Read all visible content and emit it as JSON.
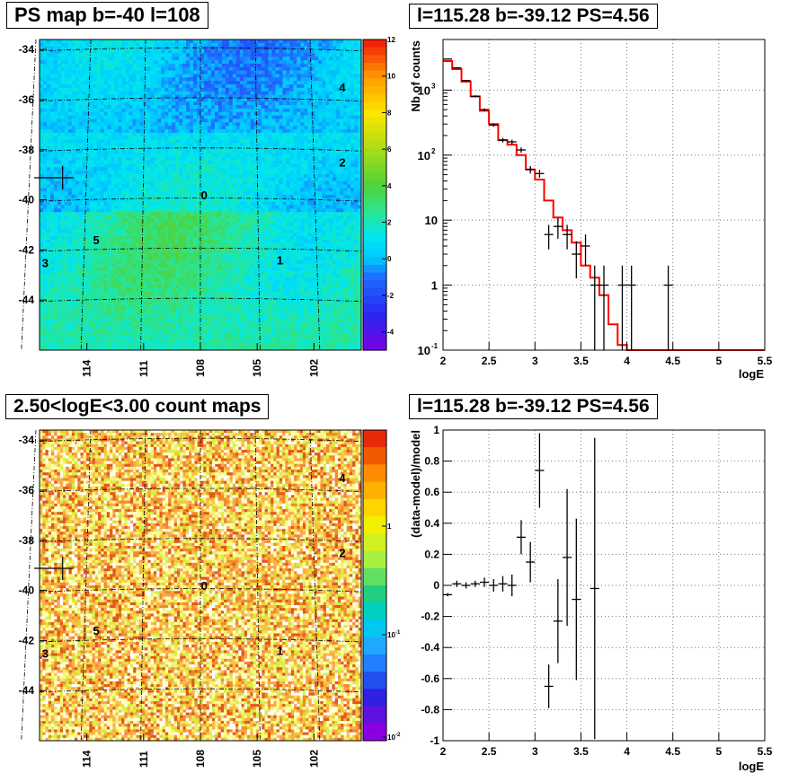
{
  "panels": {
    "ps_map": {
      "title": "PS map b=-40 l=108",
      "y_ticks": [
        "-34",
        "-36",
        "-38",
        "-40",
        "-42",
        "-44"
      ],
      "x_ticks": [
        "114",
        "111",
        "108",
        "105",
        "102"
      ],
      "colorbar_ticks": [
        "12",
        "10",
        "8",
        "6",
        "4",
        "2",
        "0",
        "-2",
        "-4"
      ],
      "sources": [
        "0",
        "1",
        "2",
        "3",
        "4",
        "5"
      ]
    },
    "count_map": {
      "title": "2.50<logE<3.00 count maps",
      "y_ticks": [
        "-34",
        "-36",
        "-38",
        "-40",
        "-42",
        "-44"
      ],
      "x_ticks": [
        "114",
        "111",
        "108",
        "105",
        "102"
      ],
      "colorbar_ticks": [
        "1",
        "10",
        "10"
      ],
      "colorbar_exponents": [
        "",
        "-1",
        "-2"
      ],
      "sources": [
        "0",
        "1",
        "2",
        "3",
        "4",
        "5"
      ]
    },
    "spectrum": {
      "title": "l=115.28 b=-39.12 PS=4.56",
      "x_label": "logE",
      "y_label": "Nb of counts",
      "x_ticks": [
        "2",
        "2.5",
        "3",
        "3.5",
        "4",
        "4.5",
        "5",
        "5.5"
      ],
      "y_ticks": [
        {
          "base": "10",
          "exp": "3"
        },
        {
          "base": "10",
          "exp": "2"
        },
        {
          "base": "10",
          "exp": ""
        },
        {
          "base": "1",
          "exp": ""
        },
        {
          "base": "10",
          "exp": "-1"
        }
      ]
    },
    "residual": {
      "title": "l=115.28 b=-39.12 PS=4.56",
      "x_label": "logE",
      "y_label": "(data-model)/model",
      "x_ticks": [
        "2",
        "2.5",
        "3",
        "3.5",
        "4",
        "4.5",
        "5",
        "5.5"
      ],
      "y_ticks": [
        "1",
        "0.8",
        "0.6",
        "0.4",
        "0.2",
        "0",
        "-0.2",
        "-0.4",
        "-0.6",
        "-0.8",
        "-1"
      ]
    }
  },
  "chart_data": [
    {
      "type": "heatmap",
      "title": "PS map b=-40 l=108",
      "xlabel": "",
      "ylabel": "",
      "xlim": [
        116.5,
        99.5
      ],
      "ylim": [
        -46,
        -33.6
      ],
      "colorbar_range": [
        -5,
        12
      ],
      "sources": [
        {
          "id": "0",
          "l": 107.8,
          "b": -39.8
        },
        {
          "id": "1",
          "l": 103.8,
          "b": -42.4
        },
        {
          "id": "2",
          "l": 100.5,
          "b": -38.5
        },
        {
          "id": "3",
          "l": 116.2,
          "b": -42.5
        },
        {
          "id": "4",
          "l": 100.5,
          "b": -35.5
        },
        {
          "id": "5",
          "l": 113.5,
          "b": -41.6
        }
      ],
      "marker": {
        "l": 115.28,
        "b": -39.12
      }
    },
    {
      "type": "heatmap",
      "title": "2.50<logE<3.00 count maps",
      "xlabel": "",
      "ylabel": "",
      "xlim": [
        116.5,
        99.5
      ],
      "ylim": [
        -46,
        -33.6
      ],
      "colorbar_scale": "log",
      "colorbar_range": [
        0.01,
        10
      ]
    },
    {
      "type": "line",
      "title": "l=115.28 b=-39.12 PS=4.56",
      "xlabel": "logE",
      "ylabel": "Nb of counts",
      "xlim": [
        2,
        5.5
      ],
      "ylim": [
        0.1,
        6000
      ],
      "yscale": "log",
      "grid": true,
      "series": [
        {
          "kind": "points",
          "x": [
            2.05,
            2.15,
            2.25,
            2.35,
            2.45,
            2.55,
            2.65,
            2.75,
            2.85,
            2.95,
            3.05,
            3.15,
            3.25,
            3.35,
            3.45,
            3.55,
            3.65,
            3.75,
            3.95,
            4.05,
            4.45
          ],
          "y": [
            3000,
            2200,
            1400,
            800,
            500,
            290,
            170,
            160,
            120,
            60,
            52,
            6,
            8,
            6,
            3,
            4,
            1,
            1,
            1,
            1,
            1
          ]
        },
        {
          "kind": "model",
          "color": "#ff0000",
          "edges": [
            2.0,
            2.1,
            2.2,
            2.3,
            2.4,
            2.5,
            2.6,
            2.7,
            2.8,
            2.9,
            3.0,
            3.1,
            3.2,
            3.3,
            3.4,
            3.5,
            3.6,
            3.7,
            3.8,
            3.9,
            4.0,
            5.5
          ],
          "values": [
            2800,
            2100,
            1350,
            800,
            480,
            300,
            170,
            145,
            100,
            60,
            42,
            20,
            11,
            7,
            4.5,
            2,
            1.3,
            0.7,
            0.25,
            0.12,
            0.1
          ]
        }
      ]
    },
    {
      "type": "scatter",
      "title": "l=115.28 b=-39.12 PS=4.56",
      "xlabel": "logE",
      "ylabel": "(data-model)/model",
      "xlim": [
        2,
        5.5
      ],
      "ylim": [
        -1,
        1
      ],
      "grid": true,
      "series": [
        {
          "x": [
            2.05,
            2.15,
            2.25,
            2.35,
            2.45,
            2.55,
            2.65,
            2.75,
            2.85,
            2.95,
            3.05,
            3.15,
            3.25,
            3.35,
            3.45,
            3.65
          ],
          "y": [
            -0.06,
            0.01,
            0.0,
            0.01,
            0.02,
            0.0,
            0.01,
            0.0,
            0.31,
            0.15,
            0.74,
            -0.65,
            -0.23,
            0.18,
            -0.09,
            -0.02
          ],
          "err": [
            0.01,
            0.02,
            0.02,
            0.02,
            0.03,
            0.04,
            0.05,
            0.07,
            0.11,
            0.13,
            0.24,
            0.14,
            0.27,
            0.44,
            0.52,
            0.97
          ]
        }
      ]
    }
  ]
}
